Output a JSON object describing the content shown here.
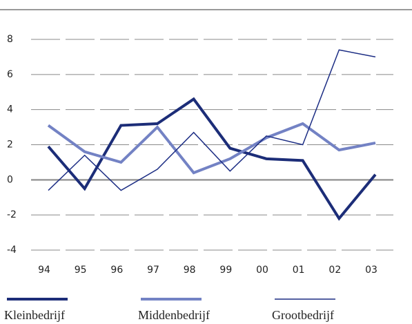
{
  "chart_data": {
    "type": "line",
    "categories": [
      "94",
      "95",
      "96",
      "97",
      "98",
      "99",
      "00",
      "01",
      "02",
      "03"
    ],
    "series": [
      {
        "name": "Kleinbedrijf",
        "color": "#1c2d78",
        "width": 4,
        "values": [
          1.9,
          -0.5,
          3.1,
          3.2,
          4.6,
          1.8,
          1.2,
          1.1,
          -2.2,
          0.3
        ]
      },
      {
        "name": "Middenbedrijf",
        "color": "#7382c4",
        "width": 4,
        "values": [
          3.1,
          1.6,
          1.0,
          3.0,
          0.4,
          1.2,
          2.4,
          3.2,
          1.7,
          2.1
        ]
      },
      {
        "name": "Grootbedrijf",
        "color": "#1c2d84",
        "width": 1.5,
        "values": [
          -0.6,
          1.4,
          -0.6,
          0.6,
          2.7,
          0.5,
          2.5,
          2.0,
          7.4,
          7.0
        ]
      }
    ],
    "ylim": [
      -4,
      8
    ],
    "yticks": [
      -4,
      -2,
      0,
      2,
      4,
      6,
      8
    ],
    "grid": true
  }
}
